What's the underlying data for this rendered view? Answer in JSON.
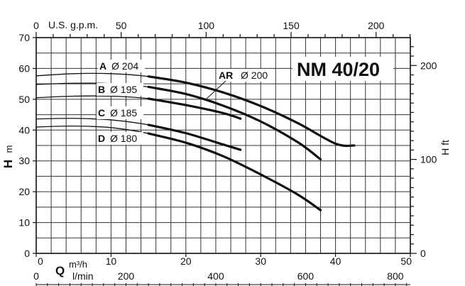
{
  "chart_data": {
    "type": "line",
    "title": "NM 40/20",
    "x_label_symbol": "Q",
    "x_unit_m3h": "m³/h",
    "x_unit_lmin": "l/min",
    "x_unit_gpm": "U.S. g.p.m.",
    "y_label_symbol": "H",
    "y_unit_m": "m",
    "y_unit_ft": "H ft",
    "xlim_m3h": [
      0,
      50
    ],
    "ylim_m": [
      0,
      70
    ],
    "x_ticks_m3h": [
      "0",
      "10",
      "20",
      "30",
      "40",
      "50"
    ],
    "x_ticks_lmin": [
      "0",
      "200",
      "400",
      "600",
      "800"
    ],
    "x_ticks_gpm": [
      "0",
      "50",
      "100",
      "150",
      "200"
    ],
    "y_ticks_m": [
      "0",
      "10",
      "20",
      "30",
      "40",
      "50",
      "60",
      "70"
    ],
    "y_ticks_ft": [
      "0",
      "100",
      "200"
    ],
    "grid": true,
    "series": [
      {
        "letter": "A",
        "diameter": "Ø 204",
        "x": [
          0,
          5,
          10,
          15,
          20,
          25,
          30,
          35,
          40,
          42.5
        ],
        "y": [
          57.6,
          58.3,
          58.3,
          57.4,
          55.4,
          52.2,
          47.8,
          42.2,
          35.6,
          35.0
        ],
        "active_from": 15
      },
      {
        "letter": "B",
        "diameter": "Ø 195",
        "x": [
          0,
          5,
          10,
          15,
          20,
          25,
          30,
          35,
          38
        ],
        "y": [
          54.8,
          55.2,
          55.1,
          54.0,
          51.7,
          47.9,
          42.8,
          36.0,
          30.5
        ],
        "active_from": 15
      },
      {
        "letter": "C",
        "diameter": "Ø 185",
        "x": [
          0,
          5,
          10,
          15,
          20,
          25,
          27.3
        ],
        "y": [
          43.6,
          43.8,
          43.3,
          41.7,
          39.0,
          35.3,
          33.6
        ],
        "active_from": 15
      },
      {
        "letter": "D",
        "diameter": "Ø 180",
        "x": [
          0,
          5,
          10,
          15,
          20,
          25,
          30,
          35,
          38
        ],
        "y": [
          41.0,
          41.3,
          40.8,
          38.9,
          35.9,
          31.5,
          25.6,
          19.0,
          14.0
        ],
        "active_from": 15
      },
      {
        "letter": "AR",
        "diameter": "Ø 200",
        "x": [
          0,
          5,
          10,
          15,
          20,
          25,
          27.3
        ],
        "y": [
          50.5,
          51.0,
          51.0,
          50.2,
          48.1,
          45.5,
          43.7
        ],
        "active_from": 15
      }
    ]
  }
}
